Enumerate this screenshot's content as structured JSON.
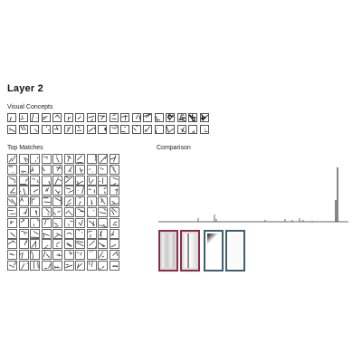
{
  "layer_title": "Layer 2",
  "sections": {
    "visual_concepts": "Visual Concepts",
    "top_matches": "Top Matches",
    "comparison": "Comparison"
  },
  "colors": {
    "concept_highlight": "#8b2d45",
    "match_highlight": "#3f5f6f",
    "chart_line": "#444444"
  }
}
